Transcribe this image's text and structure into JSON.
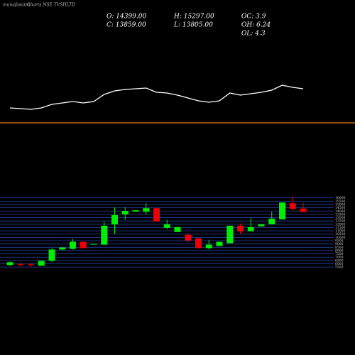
{
  "header": {
    "site": "munafasutra",
    "title": "Charts NSE TVSHLTD",
    "stats": [
      "O: 14399.00",
      "H: 15297.00",
      "OC: 3.9",
      "C: 13859.00",
      "L: 13805.00",
      "OH: 6.24",
      "OL: 4.3"
    ]
  },
  "chart_data": [
    {
      "type": "line",
      "color": "#ffffff",
      "ylim": [
        0,
        100
      ],
      "values": [
        28,
        27,
        26,
        28,
        33,
        35,
        37,
        35,
        37,
        47,
        52,
        54,
        55,
        56,
        50,
        49,
        46,
        42,
        38,
        36,
        38,
        49,
        46,
        48,
        50,
        53,
        60,
        57,
        55
      ]
    },
    {
      "type": "candlestick",
      "up_color": "#00ee00",
      "down_color": "#ee0000",
      "grid": true,
      "grid_color": "#2a3fa8",
      "ylim": [
        5300,
        16400
      ],
      "yticks": [
        5500,
        6000,
        6500,
        7000,
        7500,
        8000,
        8500,
        9000,
        9500,
        10000,
        10500,
        11000,
        11500,
        12000,
        12500,
        13000,
        13500,
        14000,
        14500,
        15000,
        15500,
        16000
      ],
      "open": [
        5810,
        5920,
        5920,
        5710,
        6450,
        8160,
        8260,
        9330,
        8900,
        8900,
        11990,
        13490,
        13910,
        13910,
        14440,
        11460,
        10820,
        10400,
        9870,
        8370,
        8690,
        9120,
        11780,
        10930,
        11680,
        11990,
        12740,
        15190,
        14399
      ],
      "high": [
        6340,
        6130,
        6130,
        6450,
        8370,
        8480,
        9760,
        9330,
        9010,
        12420,
        14550,
        14550,
        14120,
        15190,
        14440,
        12690,
        11570,
        10610,
        9870,
        9650,
        9330,
        11780,
        12100,
        12950,
        11990,
        13910,
        15300,
        16150,
        15297
      ],
      "low": [
        5700,
        5600,
        5490,
        5710,
        6240,
        8050,
        8160,
        8370,
        8900,
        8900,
        10500,
        12630,
        13910,
        13490,
        12420,
        11240,
        10820,
        9230,
        8370,
        8160,
        8690,
        9120,
        10500,
        10930,
        11680,
        11990,
        12740,
        14120,
        13805
      ],
      "close": [
        6240,
        5810,
        5810,
        6450,
        8160,
        8480,
        9330,
        8370,
        9010,
        11780,
        13380,
        14020,
        14120,
        14440,
        12420,
        11990,
        11570,
        9540,
        8370,
        8900,
        9330,
        11780,
        10930,
        11570,
        11990,
        12850,
        15300,
        14340,
        13859
      ]
    }
  ]
}
